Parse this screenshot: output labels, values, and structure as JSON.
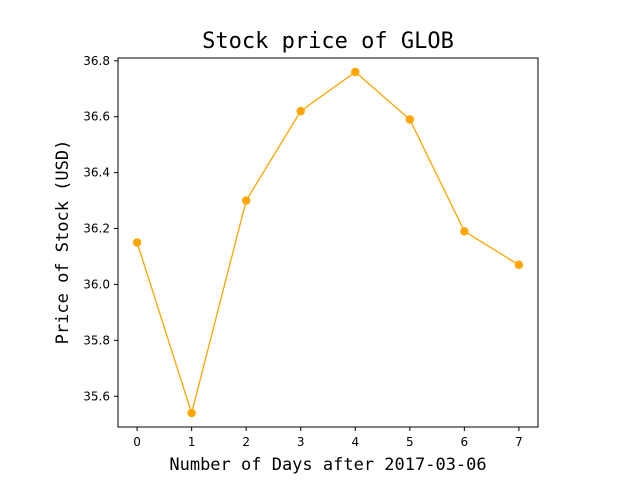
{
  "chart_data": {
    "type": "line",
    "title": "Stock price of GLOB",
    "xlabel": "Number of Days after 2017-03-06",
    "ylabel": "Price of Stock (USD)",
    "x": [
      0,
      1,
      2,
      3,
      4,
      5,
      6,
      7
    ],
    "series": [
      {
        "values": [
          36.15,
          35.54,
          36.3,
          36.62,
          36.76,
          36.59,
          36.19,
          36.07
        ],
        "color": "#ffa500"
      }
    ],
    "x_ticks": [
      0,
      1,
      2,
      3,
      4,
      5,
      6,
      7
    ],
    "x_tick_labels": [
      "0",
      "1",
      "2",
      "3",
      "4",
      "5",
      "6",
      "7"
    ],
    "y_ticks": [
      35.6,
      35.8,
      36.0,
      36.2,
      36.4,
      36.6,
      36.8
    ],
    "y_tick_labels": [
      "35.6",
      "35.8",
      "36.0",
      "36.2",
      "36.4",
      "36.6",
      "36.8"
    ],
    "xlim": [
      -0.35,
      7.35
    ],
    "ylim": [
      35.49,
      36.81
    ],
    "grid": false,
    "marker": "circle"
  }
}
